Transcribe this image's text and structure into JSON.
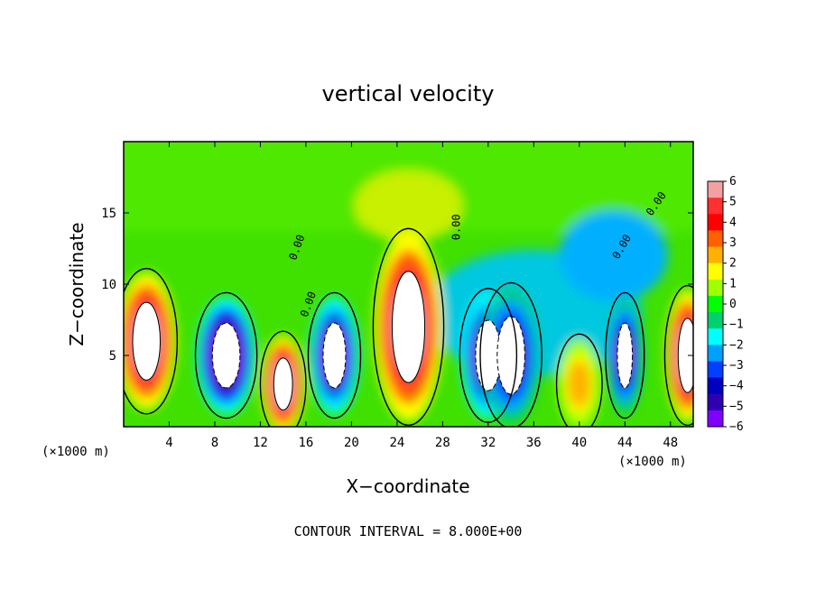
{
  "chart_data": {
    "type": "heatmap",
    "title": "vertical velocity",
    "xlabel": "X−coordinate",
    "ylabel": "Z−coordinate",
    "x_unit": "(×1000 m)",
    "x_unit_right": "(×1000 m)",
    "x_ticks": [
      4,
      8,
      12,
      16,
      20,
      24,
      28,
      32,
      36,
      40,
      44,
      48
    ],
    "y_ticks": [
      5,
      10,
      15
    ],
    "xlim": [
      0,
      50
    ],
    "ylim": [
      0,
      20
    ],
    "colorbar": {
      "ticks": [
        "6",
        "5",
        "4",
        "3",
        "2",
        "1",
        "0",
        "−1",
        "−2",
        "−3",
        "−4",
        "−5",
        "−6"
      ],
      "colors": [
        "#f5a0a0",
        "#ff3030",
        "#ff0000",
        "#ff6000",
        "#ffb000",
        "#ffff00",
        "#a0ff00",
        "#00ff00",
        "#00d070",
        "#00ffff",
        "#00a0ff",
        "#0040ff",
        "#0000c0",
        "#3000b0",
        "#8000ff"
      ]
    },
    "contour_interval_text": "CONTOUR INTERVAL = 8.000E+00",
    "contour_labels": [
      "0.00",
      "0.00",
      "0.00",
      "0.00",
      "0.00"
    ],
    "features": [
      {
        "kind": "updraft",
        "x": 2,
        "z": 6,
        "rx": 2.2,
        "rz": 4.2,
        "peak": 8
      },
      {
        "kind": "downdraft",
        "x": 9,
        "z": 5,
        "rx": 2.2,
        "rz": 3.5,
        "peak": -8
      },
      {
        "kind": "updraft",
        "x": 14,
        "z": 3,
        "rx": 1.5,
        "rz": 2.8,
        "peak": 8
      },
      {
        "kind": "downdraft",
        "x": 18.5,
        "z": 5,
        "rx": 1.8,
        "rz": 3.5,
        "peak": -7
      },
      {
        "kind": "updraft",
        "x": 25,
        "z": 7,
        "rx": 2.6,
        "rz": 6,
        "peak": 9
      },
      {
        "kind": "downdraft",
        "x": 32,
        "z": 5,
        "rx": 2,
        "rz": 3.8,
        "peak": -7
      },
      {
        "kind": "downdraft",
        "x": 34,
        "z": 5,
        "rx": 2.2,
        "rz": 4.2,
        "peak": -6
      },
      {
        "kind": "updraft",
        "x": 40,
        "z": 3,
        "rx": 1.5,
        "rz": 2.6,
        "peak": 3
      },
      {
        "kind": "downdraft",
        "x": 44,
        "z": 5,
        "rx": 1.2,
        "rz": 3.5,
        "peak": -6
      },
      {
        "kind": "updraft",
        "x": 49.5,
        "z": 5,
        "rx": 1.5,
        "rz": 4,
        "peak": 8
      }
    ]
  }
}
